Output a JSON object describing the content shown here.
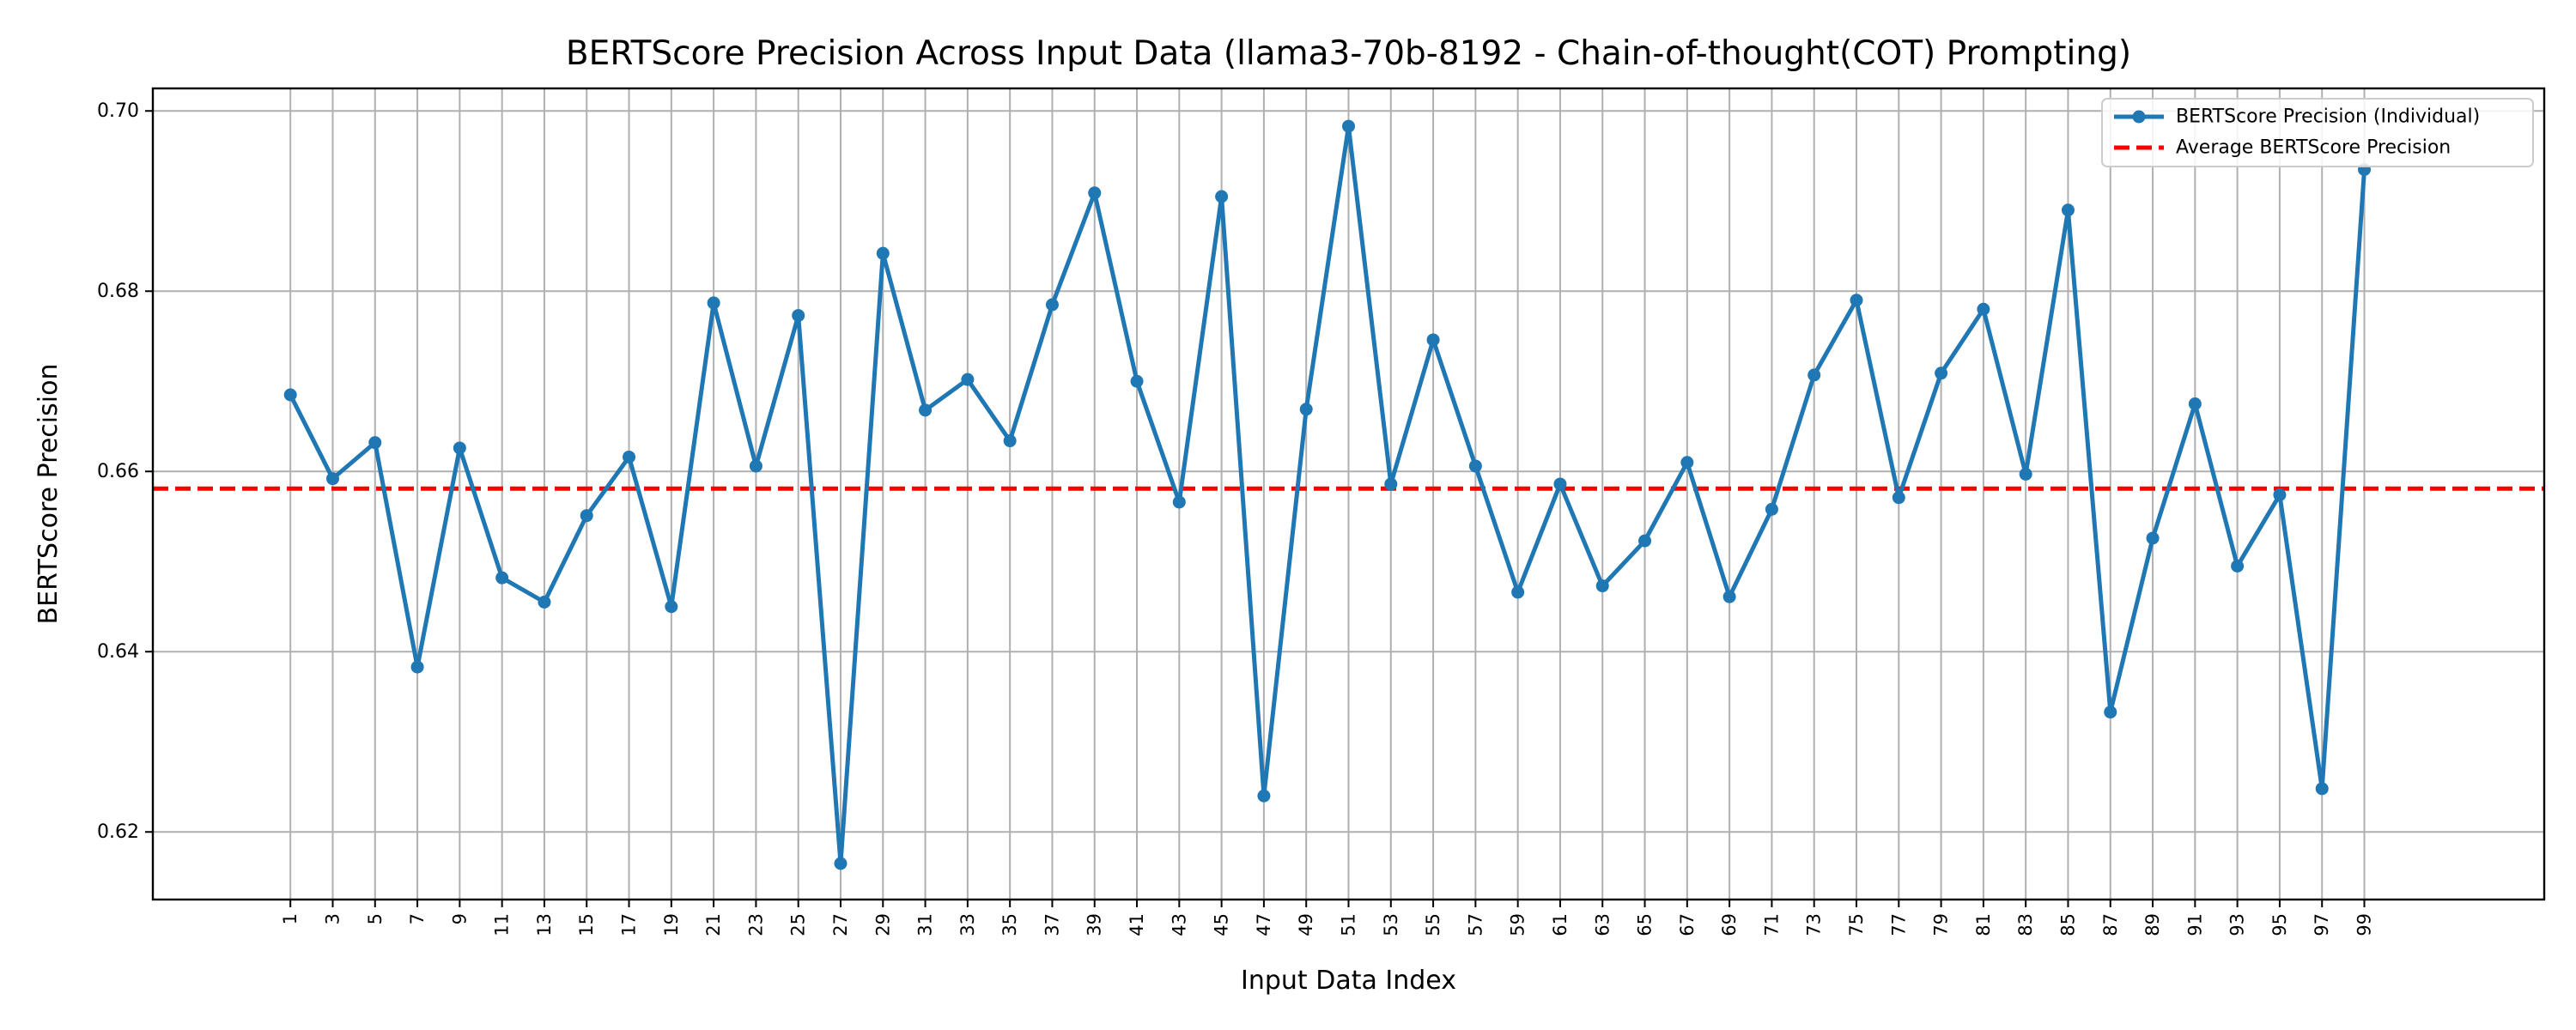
{
  "chart_data": {
    "type": "line",
    "title": "BERTScore Precision Across Input Data (llama3-70b-8192 - Chain-of-thought(COT) Prompting)",
    "xlabel": "Input Data Index",
    "ylabel": "BERTScore Precision",
    "x": [
      1,
      3,
      5,
      7,
      9,
      11,
      13,
      15,
      17,
      19,
      21,
      23,
      25,
      27,
      29,
      31,
      33,
      35,
      37,
      39,
      41,
      43,
      45,
      47,
      49,
      51,
      53,
      55,
      57,
      59,
      61,
      63,
      65,
      67,
      69,
      71,
      73,
      75,
      77,
      79,
      81,
      83,
      85,
      87,
      89,
      91,
      93,
      95,
      97,
      99
    ],
    "xticks": [
      "1",
      "3",
      "5",
      "7",
      "9",
      "11",
      "13",
      "15",
      "17",
      "19",
      "21",
      "23",
      "25",
      "27",
      "29",
      "31",
      "33",
      "35",
      "37",
      "39",
      "41",
      "43",
      "45",
      "47",
      "49",
      "51",
      "53",
      "55",
      "57",
      "59",
      "61",
      "63",
      "65",
      "67",
      "69",
      "71",
      "73",
      "75",
      "77",
      "79",
      "81",
      "83",
      "85",
      "87",
      "89",
      "91",
      "93",
      "95",
      "97",
      "99"
    ],
    "yticks": [
      "0.62",
      "0.64",
      "0.66",
      "0.68",
      "0.70"
    ],
    "ylim": [
      0.6125,
      0.7025
    ],
    "xlim": [
      -5.5,
      107.5
    ],
    "grid": true,
    "legend_position": "top-right",
    "series": [
      {
        "name": "BERTScore Precision (Individual)",
        "color": "#1f77b4",
        "style": "line-with-markers",
        "values": [
          0.6685,
          0.6592,
          0.6632,
          0.6383,
          0.6626,
          0.6482,
          0.6455,
          0.6551,
          0.6616,
          0.645,
          0.6787,
          0.6606,
          0.6773,
          0.6165,
          0.6842,
          0.6668,
          0.6702,
          0.6634,
          0.6785,
          0.6909,
          0.67,
          0.6566,
          0.6905,
          0.624,
          0.6669,
          0.6983,
          0.6586,
          0.6746,
          0.6606,
          0.6466,
          0.6586,
          0.6473,
          0.6523,
          0.661,
          0.6461,
          0.6558,
          0.6707,
          0.679,
          0.6571,
          0.6709,
          0.678,
          0.6597,
          0.689,
          0.6333,
          0.6526,
          0.6675,
          0.6495,
          0.6574,
          0.6248,
          0.6935
        ]
      },
      {
        "name": "Average BERTScore Precision",
        "color": "#ff0000",
        "style": "dashed-horizontal",
        "value": 0.6581
      }
    ]
  }
}
